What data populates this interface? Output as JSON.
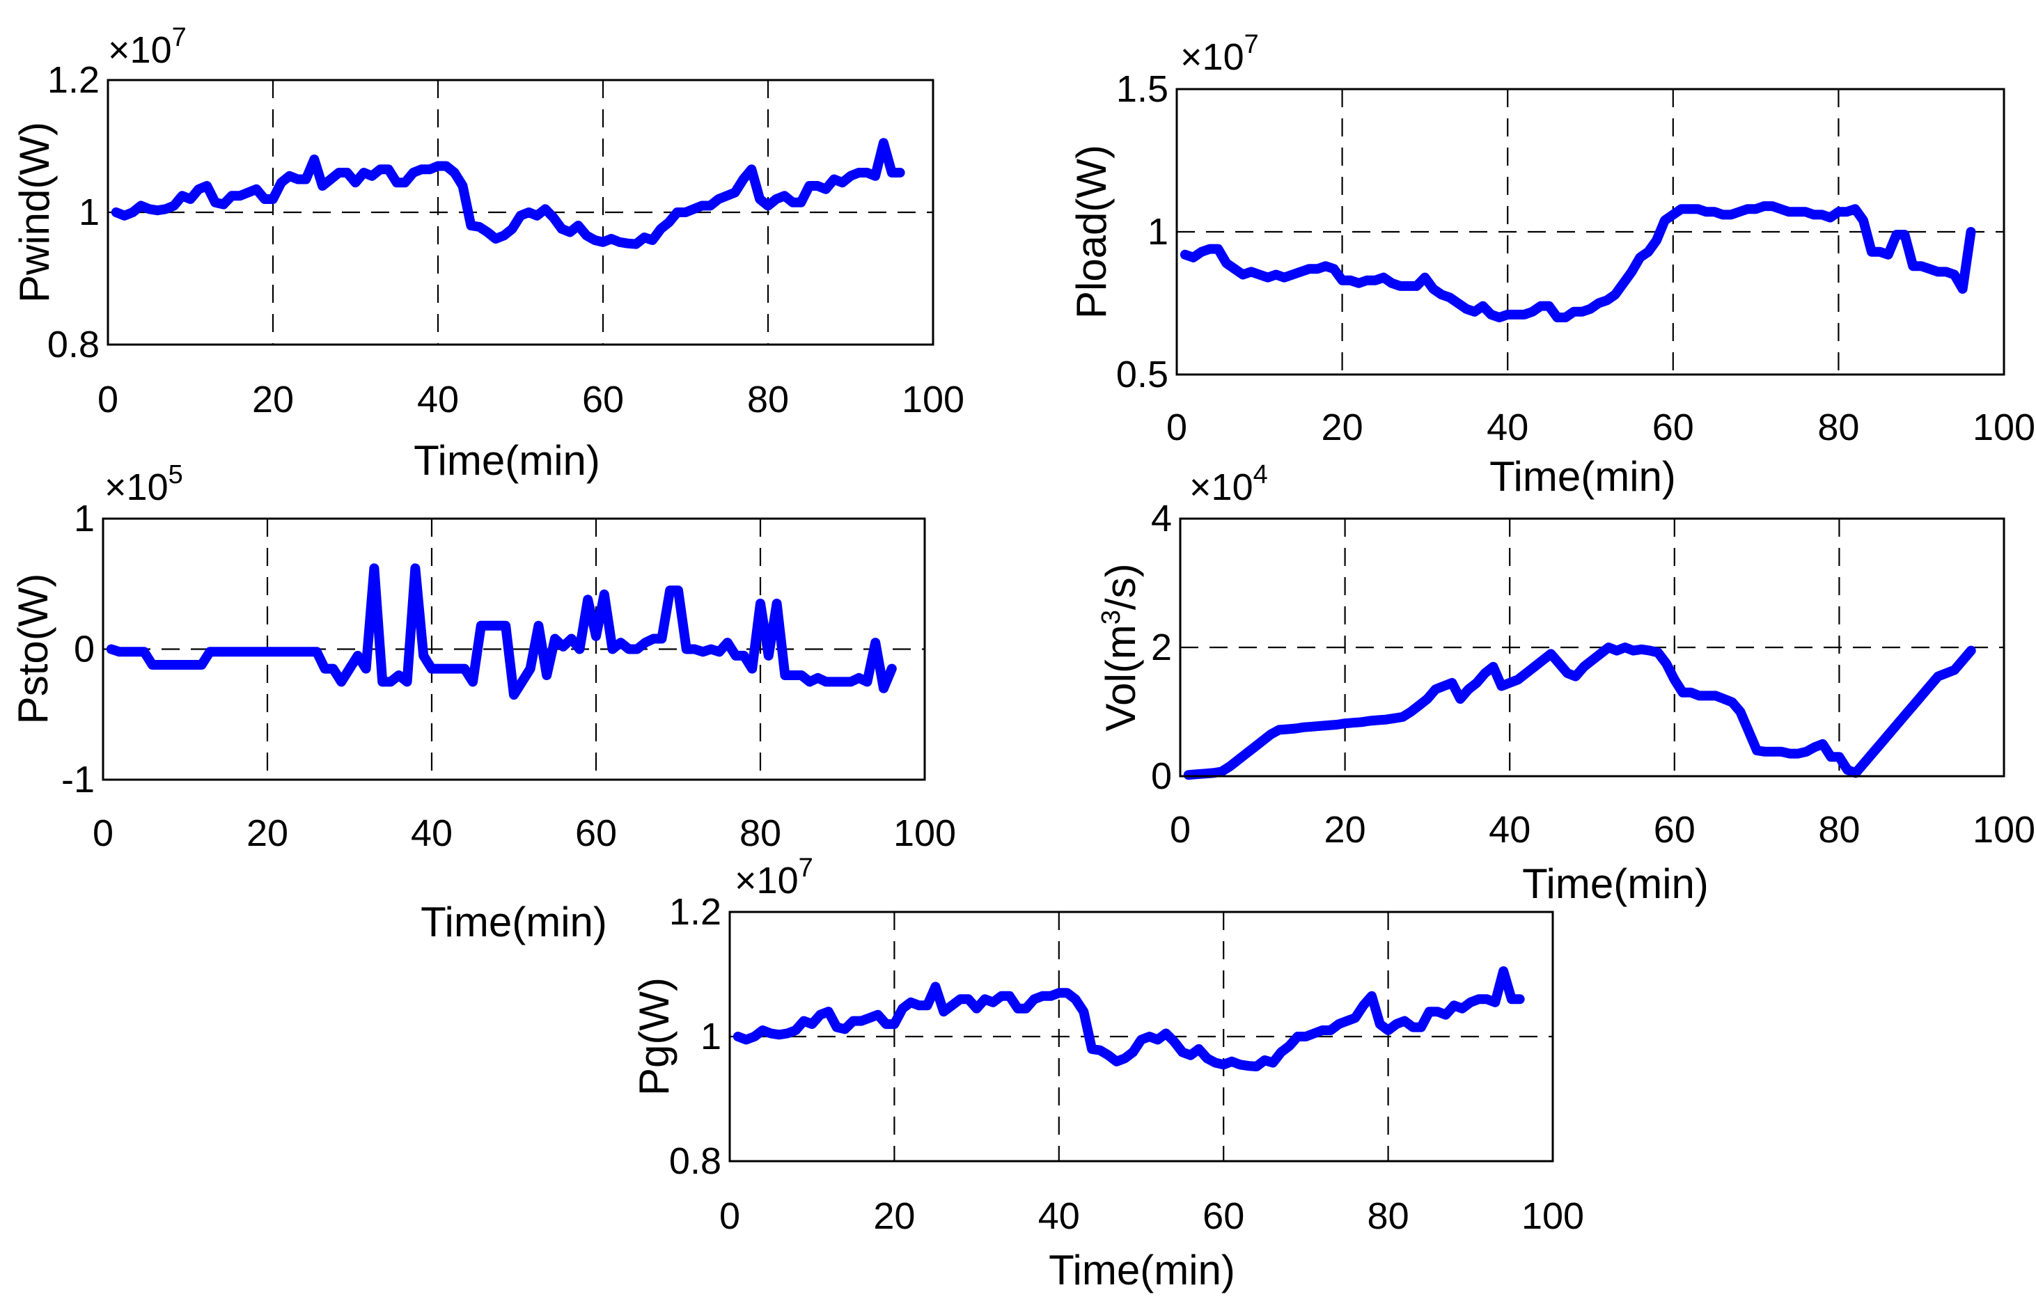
{
  "chart_data": [
    {
      "type": "line",
      "id": "pwind",
      "ylabel": "Pwind(W)",
      "xlabel": "Time(min)",
      "exponent_base": "×10",
      "exponent_power": "7",
      "xlim": [
        0,
        100
      ],
      "ylim": [
        0.8,
        1.2
      ],
      "xticks": [
        0,
        20,
        40,
        60,
        80,
        100
      ],
      "xtick_labels": [
        "0",
        "20",
        "40",
        "60",
        "80",
        "100"
      ],
      "yticks": [
        0.8,
        1,
        1.2
      ],
      "ytick_labels": [
        "0.8",
        "1",
        "1.2"
      ],
      "grid_x": [
        20,
        40,
        60,
        80
      ],
      "grid_y": [
        1
      ],
      "color": "#0000ff",
      "x": [
        1,
        2,
        3,
        4,
        5,
        6,
        7,
        8,
        9,
        10,
        11,
        12,
        13,
        14,
        15,
        16,
        17,
        18,
        19,
        20,
        21,
        22,
        23,
        24,
        25,
        26,
        27,
        28,
        29,
        30,
        31,
        32,
        33,
        34,
        35,
        36,
        37,
        38,
        39,
        40,
        41,
        42,
        43,
        44,
        45,
        46,
        47,
        48,
        49,
        50,
        51,
        52,
        53,
        54,
        55,
        56,
        57,
        58,
        59,
        60,
        61,
        62,
        63,
        64,
        65,
        66,
        67,
        68,
        69,
        70,
        71,
        72,
        73,
        74,
        75,
        76,
        77,
        78,
        79,
        80,
        81,
        82,
        83,
        84,
        85,
        86,
        87,
        88,
        89,
        90,
        91,
        92,
        93,
        94,
        95,
        96
      ],
      "y": [
        1.0,
        0.995,
        1.0,
        1.01,
        1.005,
        1.003,
        1.005,
        1.01,
        1.025,
        1.02,
        1.035,
        1.04,
        1.015,
        1.012,
        1.025,
        1.025,
        1.03,
        1.035,
        1.02,
        1.02,
        1.045,
        1.055,
        1.05,
        1.05,
        1.08,
        1.04,
        1.05,
        1.06,
        1.06,
        1.045,
        1.06,
        1.055,
        1.065,
        1.065,
        1.045,
        1.045,
        1.06,
        1.065,
        1.065,
        1.07,
        1.07,
        1.06,
        1.04,
        0.98,
        0.978,
        0.97,
        0.96,
        0.965,
        0.975,
        0.995,
        1.0,
        0.995,
        1.005,
        0.992,
        0.975,
        0.97,
        0.98,
        0.965,
        0.958,
        0.955,
        0.96,
        0.955,
        0.953,
        0.952,
        0.962,
        0.958,
        0.975,
        0.985,
        1.0,
        1.0,
        1.005,
        1.01,
        1.01,
        1.02,
        1.025,
        1.03,
        1.05,
        1.065,
        1.02,
        1.01,
        1.02,
        1.025,
        1.015,
        1.015,
        1.04,
        1.04,
        1.035,
        1.05,
        1.045,
        1.055,
        1.06,
        1.06,
        1.055,
        1.105,
        1.06,
        1.06
      ]
    },
    {
      "type": "line",
      "id": "pload",
      "ylabel": "Pload(W)",
      "xlabel": "Time(min)",
      "exponent_base": "×10",
      "exponent_power": "7",
      "xlim": [
        0,
        100
      ],
      "ylim": [
        0.5,
        1.5
      ],
      "xticks": [
        0,
        20,
        40,
        60,
        80,
        100
      ],
      "xtick_labels": [
        "0",
        "20",
        "40",
        "60",
        "80",
        "100"
      ],
      "yticks": [
        0.5,
        1,
        1.5
      ],
      "ytick_labels": [
        "0.5",
        "1",
        "1.5"
      ],
      "grid_x": [
        20,
        40,
        60,
        80
      ],
      "grid_y": [
        1
      ],
      "color": "#0000ff",
      "x": [
        1,
        2,
        3,
        4,
        5,
        6,
        7,
        8,
        9,
        10,
        11,
        12,
        13,
        14,
        15,
        16,
        17,
        18,
        19,
        20,
        21,
        22,
        23,
        24,
        25,
        26,
        27,
        28,
        29,
        30,
        31,
        32,
        33,
        34,
        35,
        36,
        37,
        38,
        39,
        40,
        41,
        42,
        43,
        44,
        45,
        46,
        47,
        48,
        49,
        50,
        51,
        52,
        53,
        54,
        55,
        56,
        57,
        58,
        59,
        60,
        61,
        62,
        63,
        64,
        65,
        66,
        67,
        68,
        69,
        70,
        71,
        72,
        73,
        74,
        75,
        76,
        77,
        78,
        79,
        80,
        81,
        82,
        83,
        84,
        85,
        86,
        87,
        88,
        89,
        90,
        91,
        92,
        93,
        94,
        95,
        96
      ],
      "y": [
        0.92,
        0.91,
        0.93,
        0.94,
        0.94,
        0.89,
        0.87,
        0.85,
        0.86,
        0.85,
        0.84,
        0.85,
        0.84,
        0.85,
        0.86,
        0.87,
        0.87,
        0.88,
        0.87,
        0.83,
        0.83,
        0.82,
        0.83,
        0.83,
        0.84,
        0.82,
        0.81,
        0.81,
        0.81,
        0.84,
        0.8,
        0.78,
        0.77,
        0.75,
        0.73,
        0.72,
        0.74,
        0.71,
        0.7,
        0.71,
        0.71,
        0.71,
        0.72,
        0.74,
        0.74,
        0.7,
        0.7,
        0.72,
        0.72,
        0.73,
        0.75,
        0.76,
        0.78,
        0.82,
        0.86,
        0.91,
        0.93,
        0.97,
        1.04,
        1.06,
        1.08,
        1.08,
        1.08,
        1.07,
        1.07,
        1.06,
        1.06,
        1.07,
        1.08,
        1.08,
        1.09,
        1.09,
        1.08,
        1.07,
        1.07,
        1.07,
        1.06,
        1.06,
        1.05,
        1.07,
        1.07,
        1.08,
        1.04,
        0.93,
        0.93,
        0.92,
        0.99,
        0.99,
        0.88,
        0.88,
        0.87,
        0.86,
        0.86,
        0.85,
        0.8,
        1.0
      ]
    },
    {
      "type": "line",
      "id": "psto",
      "ylabel": "Psto(W)",
      "xlabel": "Time(min)",
      "exponent_base": "×10",
      "exponent_power": "5",
      "xlim": [
        0,
        100
      ],
      "ylim": [
        -1,
        1
      ],
      "xticks": [
        0,
        20,
        40,
        60,
        80,
        100
      ],
      "xtick_labels": [
        "0",
        "20",
        "40",
        "60",
        "80",
        "100"
      ],
      "yticks": [
        -1,
        0,
        1
      ],
      "ytick_labels": [
        "-1",
        "0",
        "1"
      ],
      "grid_x": [
        20,
        40,
        60,
        80
      ],
      "grid_y": [
        0
      ],
      "color": "#0000ff",
      "x": [
        1,
        2,
        3,
        4,
        5,
        6,
        7,
        8,
        9,
        10,
        11,
        12,
        13,
        14,
        15,
        16,
        17,
        18,
        19,
        20,
        21,
        22,
        23,
        24,
        25,
        26,
        27,
        28,
        29,
        30,
        31,
        32,
        33,
        34,
        35,
        36,
        37,
        38,
        39,
        40,
        41,
        42,
        43,
        44,
        45,
        46,
        47,
        48,
        49,
        50,
        51,
        52,
        53,
        54,
        55,
        56,
        57,
        58,
        59,
        60,
        61,
        62,
        63,
        64,
        65,
        66,
        67,
        68,
        69,
        70,
        71,
        72,
        73,
        74,
        75,
        76,
        77,
        78,
        79,
        80,
        81,
        82,
        83,
        84,
        85,
        86,
        87,
        88,
        89,
        90,
        91,
        92,
        93,
        94,
        95,
        96
      ],
      "y": [
        0,
        -0.02,
        -0.02,
        -0.02,
        -0.02,
        -0.12,
        -0.12,
        -0.12,
        -0.12,
        -0.12,
        -0.12,
        -0.12,
        -0.02,
        -0.02,
        -0.02,
        -0.02,
        -0.02,
        -0.02,
        -0.02,
        -0.02,
        -0.02,
        -0.02,
        -0.02,
        -0.02,
        -0.02,
        -0.02,
        -0.15,
        -0.15,
        -0.25,
        -0.15,
        -0.05,
        -0.15,
        0.62,
        -0.25,
        -0.25,
        -0.2,
        -0.25,
        0.62,
        -0.05,
        -0.15,
        -0.15,
        -0.15,
        -0.15,
        -0.15,
        -0.25,
        0.18,
        0.18,
        0.18,
        0.18,
        -0.35,
        -0.25,
        -0.15,
        0.18,
        -0.2,
        0.08,
        0.02,
        0.08,
        0.0,
        0.38,
        0.1,
        0.42,
        0.0,
        0.05,
        0.0,
        0.0,
        0.05,
        0.08,
        0.08,
        0.45,
        0.45,
        0.0,
        0.0,
        -0.02,
        0.0,
        -0.02,
        0.05,
        -0.05,
        -0.05,
        -0.15,
        0.35,
        -0.05,
        0.35,
        -0.2,
        -0.2,
        -0.2,
        -0.25,
        -0.22,
        -0.25,
        -0.25,
        -0.25,
        -0.25,
        -0.22,
        -0.25,
        0.05,
        -0.3,
        -0.15
      ]
    },
    {
      "type": "line",
      "id": "vol",
      "ylabel": "Vol(m³/s)",
      "ylabel_main": "Vol(m",
      "ylabel_sup": "3",
      "ylabel_end": "/s)",
      "xlabel": "Time(min)",
      "exponent_base": "×10",
      "exponent_power": "4",
      "xlim": [
        0,
        100
      ],
      "ylim": [
        0,
        4
      ],
      "xticks": [
        0,
        20,
        40,
        60,
        80,
        100
      ],
      "xtick_labels": [
        "0",
        "20",
        "40",
        "60",
        "80",
        "100"
      ],
      "yticks": [
        0,
        2,
        4
      ],
      "ytick_labels": [
        "0",
        "2",
        "4"
      ],
      "grid_x": [
        20,
        40,
        60,
        80
      ],
      "grid_y": [
        2
      ],
      "color": "#0000ff",
      "x": [
        1,
        2,
        3,
        4,
        5,
        6,
        7,
        8,
        9,
        10,
        11,
        12,
        13,
        14,
        15,
        16,
        17,
        18,
        19,
        20,
        21,
        22,
        23,
        24,
        25,
        26,
        27,
        28,
        29,
        30,
        31,
        32,
        33,
        34,
        35,
        36,
        37,
        38,
        39,
        40,
        41,
        42,
        43,
        44,
        45,
        46,
        47,
        48,
        49,
        50,
        51,
        52,
        53,
        54,
        55,
        56,
        57,
        58,
        59,
        60,
        61,
        62,
        63,
        64,
        65,
        66,
        67,
        68,
        69,
        70,
        71,
        72,
        73,
        74,
        75,
        76,
        77,
        78,
        79,
        80,
        81,
        82,
        83,
        84,
        85,
        86,
        87,
        88,
        89,
        90,
        91,
        92,
        93,
        94,
        95,
        96
      ],
      "y": [
        0.02,
        0.03,
        0.04,
        0.05,
        0.07,
        0.15,
        0.25,
        0.35,
        0.45,
        0.55,
        0.65,
        0.72,
        0.73,
        0.74,
        0.76,
        0.77,
        0.78,
        0.79,
        0.8,
        0.82,
        0.83,
        0.84,
        0.86,
        0.87,
        0.88,
        0.9,
        0.92,
        1.0,
        1.1,
        1.2,
        1.35,
        1.4,
        1.45,
        1.2,
        1.35,
        1.45,
        1.6,
        1.7,
        1.4,
        1.45,
        1.5,
        1.6,
        1.7,
        1.8,
        1.9,
        1.75,
        1.6,
        1.55,
        1.7,
        1.8,
        1.9,
        2.0,
        1.95,
        2.0,
        1.95,
        1.97,
        1.95,
        1.92,
        1.75,
        1.5,
        1.3,
        1.3,
        1.25,
        1.25,
        1.25,
        1.2,
        1.15,
        1.0,
        0.7,
        0.4,
        0.38,
        0.38,
        0.38,
        0.35,
        0.35,
        0.38,
        0.45,
        0.5,
        0.3,
        0.3,
        0.1,
        0.05,
        0.2,
        0.35,
        0.5,
        0.65,
        0.8,
        0.95,
        1.1,
        1.25,
        1.4,
        1.55,
        1.6,
        1.65,
        1.8,
        1.95
      ]
    },
    {
      "type": "line",
      "id": "pg",
      "ylabel": "Pg(W)",
      "xlabel": "Time(min)",
      "exponent_base": "×10",
      "exponent_power": "7",
      "xlim": [
        0,
        100
      ],
      "ylim": [
        0.8,
        1.2
      ],
      "xticks": [
        0,
        20,
        40,
        60,
        80,
        100
      ],
      "xtick_labels": [
        "0",
        "20",
        "40",
        "60",
        "80",
        "100"
      ],
      "yticks": [
        0.8,
        1,
        1.2
      ],
      "ytick_labels": [
        "0.8",
        "1",
        "1.2"
      ],
      "grid_x": [
        20,
        40,
        60,
        80
      ],
      "grid_y": [
        1
      ],
      "color": "#0000ff",
      "x": [
        1,
        2,
        3,
        4,
        5,
        6,
        7,
        8,
        9,
        10,
        11,
        12,
        13,
        14,
        15,
        16,
        17,
        18,
        19,
        20,
        21,
        22,
        23,
        24,
        25,
        26,
        27,
        28,
        29,
        30,
        31,
        32,
        33,
        34,
        35,
        36,
        37,
        38,
        39,
        40,
        41,
        42,
        43,
        44,
        45,
        46,
        47,
        48,
        49,
        50,
        51,
        52,
        53,
        54,
        55,
        56,
        57,
        58,
        59,
        60,
        61,
        62,
        63,
        64,
        65,
        66,
        67,
        68,
        69,
        70,
        71,
        72,
        73,
        74,
        75,
        76,
        77,
        78,
        79,
        80,
        81,
        82,
        83,
        84,
        85,
        86,
        87,
        88,
        89,
        90,
        91,
        92,
        93,
        94,
        95,
        96
      ],
      "y": [
        1.0,
        0.995,
        1.0,
        1.01,
        1.005,
        1.003,
        1.005,
        1.01,
        1.025,
        1.02,
        1.035,
        1.04,
        1.015,
        1.012,
        1.025,
        1.025,
        1.03,
        1.035,
        1.02,
        1.02,
        1.045,
        1.055,
        1.05,
        1.05,
        1.08,
        1.04,
        1.05,
        1.06,
        1.06,
        1.045,
        1.06,
        1.055,
        1.065,
        1.065,
        1.045,
        1.045,
        1.06,
        1.065,
        1.065,
        1.07,
        1.07,
        1.06,
        1.04,
        0.98,
        0.978,
        0.97,
        0.96,
        0.965,
        0.975,
        0.995,
        1.0,
        0.995,
        1.005,
        0.992,
        0.975,
        0.97,
        0.98,
        0.965,
        0.958,
        0.955,
        0.96,
        0.955,
        0.953,
        0.952,
        0.962,
        0.958,
        0.975,
        0.985,
        1.0,
        1.0,
        1.005,
        1.01,
        1.01,
        1.02,
        1.025,
        1.03,
        1.05,
        1.065,
        1.02,
        1.01,
        1.02,
        1.025,
        1.015,
        1.015,
        1.04,
        1.04,
        1.035,
        1.05,
        1.045,
        1.055,
        1.06,
        1.06,
        1.055,
        1.105,
        1.06,
        1.06
      ]
    }
  ]
}
